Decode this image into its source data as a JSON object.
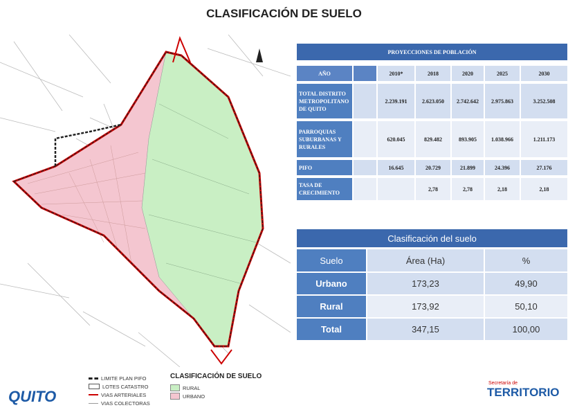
{
  "title": "CLASIFICACIÓN DE SUELO",
  "population_table": {
    "title": "PROYECCIONES DE POBLACIÓN",
    "header": {
      "label": "AÑO",
      "years": [
        "2010*",
        "2018",
        "2020",
        "2025",
        "2030"
      ]
    },
    "rows": [
      {
        "label": "TOTAL DISTRITO METROPOLITANO DE QUITO",
        "values": [
          "2.239.191",
          "2.623.050",
          "2.742.642",
          "2.975.863",
          "3.252.508"
        ]
      },
      {
        "label": "PARROQUIAS SUBURBANAS Y RURALES",
        "values": [
          "620.045",
          "829.482",
          "893.905",
          "1.038.966",
          "1.211.173"
        ]
      },
      {
        "label": "PIFO",
        "values": [
          "16.645",
          "20.729",
          "21.899",
          "24.396",
          "27.176"
        ]
      },
      {
        "label": "TASA DE CRECIMIENTO",
        "values": [
          "2,78",
          "2,78",
          "2,18",
          "2,18"
        ]
      }
    ]
  },
  "soil_table": {
    "title": "Clasificación del suelo",
    "header": [
      "Suelo",
      "Área (Ha)",
      "%"
    ],
    "rows": [
      [
        "Urbano",
        "173,23",
        "49,90"
      ],
      [
        "Rural",
        "173,92",
        "50,10"
      ],
      [
        "Total",
        "347,15",
        "100,00"
      ]
    ]
  },
  "legend": {
    "items": [
      "LIMITE PLAN PIFO",
      "LOTES CATASTRO",
      "VIAS ARTERIALES",
      "VIAS COLECTORAS"
    ],
    "classification_title": "CLASIFICACIÓN DE SUELO",
    "classes": [
      "RURAL",
      "URBANO"
    ]
  },
  "logos": {
    "left": "QUITO",
    "right_top": "Secretaría de",
    "right": "TERRITORIO"
  }
}
